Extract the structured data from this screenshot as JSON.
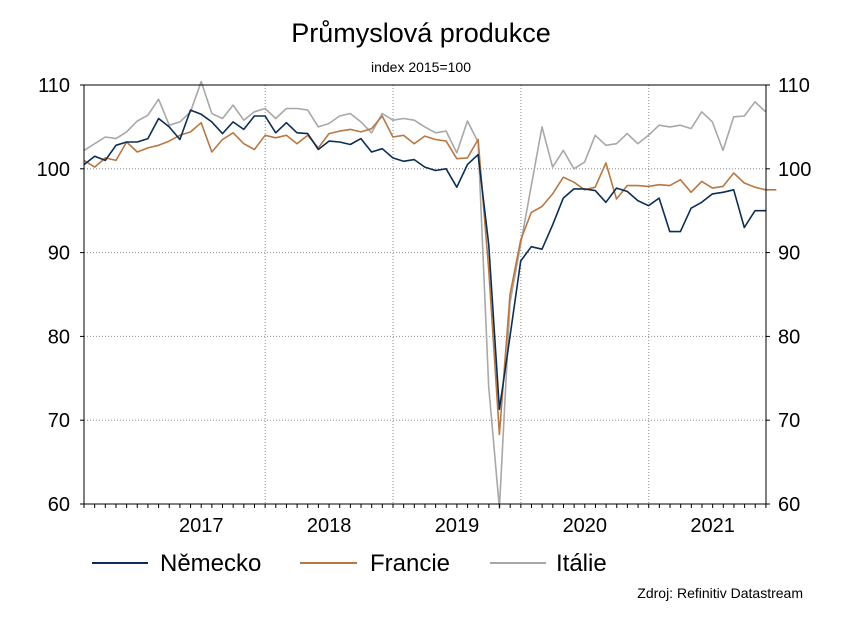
{
  "chart_data": {
    "type": "line",
    "title": "Průmyslová produkce",
    "subtitle": "index 2015=100",
    "source": "Zdroj: Refinitiv Datastream",
    "ylim": [
      60,
      110
    ],
    "y_ticks": [
      "60",
      "70",
      "80",
      "90",
      "100",
      "110"
    ],
    "x_range": [
      2016.583,
      2021.917
    ],
    "year_labels": [
      "2017",
      "2018",
      "2019",
      "2020",
      "2021"
    ],
    "grid": true,
    "legend_position": "bottom",
    "colors": {
      "nemecko": "#0d2e52",
      "francie": "#b87844",
      "italie": "#a8a8a8",
      "grid": "#8c8c8c"
    },
    "x_start": 2016.583,
    "x_step": 0.0833,
    "series": [
      {
        "name": "Německo",
        "color": "#0d2e52",
        "values": [
          100.5,
          101.5,
          101.0,
          102.8,
          103.2,
          103.2,
          103.6,
          106.0,
          105.0,
          103.5,
          107.0,
          106.5,
          105.6,
          104.2,
          105.6,
          104.7,
          106.3,
          106.3,
          104.3,
          105.5,
          104.3,
          104.2,
          102.3,
          103.3,
          103.2,
          102.9,
          103.6,
          102.0,
          102.4,
          101.3,
          100.9,
          101.1,
          100.2,
          99.8,
          100.0,
          97.8,
          100.5,
          101.7,
          91.0,
          71.3,
          80.0,
          89.0,
          90.7,
          90.4,
          93.3,
          96.5,
          97.6,
          97.6,
          97.4,
          96.0,
          97.7,
          97.3,
          96.2,
          95.6,
          96.5,
          92.5,
          92.5,
          95.3,
          96.0,
          97.0,
          97.2,
          97.5,
          93.0,
          95.0,
          95.0
        ]
      },
      {
        "name": "Francie",
        "color": "#b87844",
        "values": [
          101.0,
          100.2,
          101.3,
          101.0,
          103.2,
          102.0,
          102.5,
          102.8,
          103.3,
          104.0,
          104.4,
          105.5,
          102.0,
          103.5,
          104.3,
          103.0,
          102.3,
          104.0,
          103.7,
          104.0,
          103.0,
          104.0,
          102.5,
          104.2,
          104.5,
          104.7,
          104.4,
          104.8,
          106.3,
          103.8,
          104.0,
          103.0,
          103.9,
          103.5,
          103.3,
          101.2,
          101.3,
          103.5,
          88.0,
          68.3,
          85.0,
          91.5,
          94.8,
          95.5,
          97.0,
          99.0,
          98.4,
          97.5,
          97.8,
          100.7,
          96.4,
          98.0,
          98.0,
          97.9,
          98.1,
          98.0,
          98.7,
          97.2,
          98.5,
          97.7,
          97.9,
          99.5,
          98.3,
          97.8,
          97.5,
          97.5
        ]
      },
      {
        "name": "Itálie",
        "color": "#a8a8a8",
        "values": [
          102.2,
          103.0,
          103.8,
          103.6,
          104.4,
          105.7,
          106.4,
          108.3,
          105.2,
          105.6,
          106.8,
          110.4,
          106.6,
          106.0,
          107.6,
          105.8,
          106.8,
          107.2,
          106.0,
          107.2,
          107.2,
          107.0,
          105.0,
          105.4,
          106.3,
          106.6,
          105.6,
          104.3,
          106.6,
          105.8,
          106.0,
          105.8,
          105.0,
          104.3,
          104.5,
          101.9,
          105.7,
          103.2,
          74.0,
          59.5,
          84.0,
          91.0,
          98.0,
          105.0,
          100.2,
          102.2,
          100.0,
          100.8,
          104.0,
          102.8,
          103.0,
          104.2,
          103.0,
          104.0,
          105.2,
          105.0,
          105.2,
          104.8,
          106.8,
          105.6,
          102.2,
          106.2,
          106.3,
          108.0,
          106.8
        ]
      }
    ]
  }
}
